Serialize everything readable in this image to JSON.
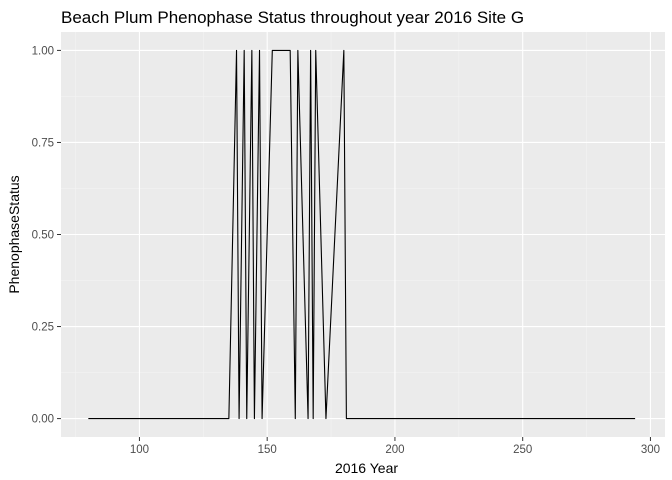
{
  "chart_data": {
    "type": "line",
    "title": "Beach Plum Phenophase Status throughout year 2016 Site G",
    "xlabel": "2016 Year",
    "ylabel": "PhenophaseStatus",
    "xlim": [
      69.3,
      305.7
    ],
    "ylim": [
      -0.05,
      1.05
    ],
    "x_ticks": [
      100,
      150,
      200,
      250,
      300
    ],
    "y_ticks": [
      0,
      0.25,
      0.5,
      0.75,
      1
    ],
    "x_tick_labels": [
      "100",
      "150",
      "200",
      "250",
      "300"
    ],
    "y_tick_labels": [
      "0.00",
      "0.25",
      "0.50",
      "0.75",
      "1.00"
    ],
    "grid": true,
    "legend": "none",
    "colors": {
      "panel": "#ebebeb",
      "grid_major": "#ffffff",
      "grid_minor": "#f3f3f3",
      "line": "#000000",
      "tick": "#333333"
    },
    "series": [
      {
        "x": [
          80,
          135,
          138,
          139,
          141,
          142,
          144,
          145,
          147,
          148,
          152,
          159,
          161,
          162,
          166,
          167,
          168,
          169,
          173,
          180,
          181,
          294
        ],
        "values": [
          0,
          0,
          1,
          0,
          1,
          0,
          1,
          0,
          1,
          0,
          1,
          1,
          0,
          1,
          0,
          1,
          0,
          1,
          0,
          1,
          0,
          0
        ]
      }
    ]
  }
}
